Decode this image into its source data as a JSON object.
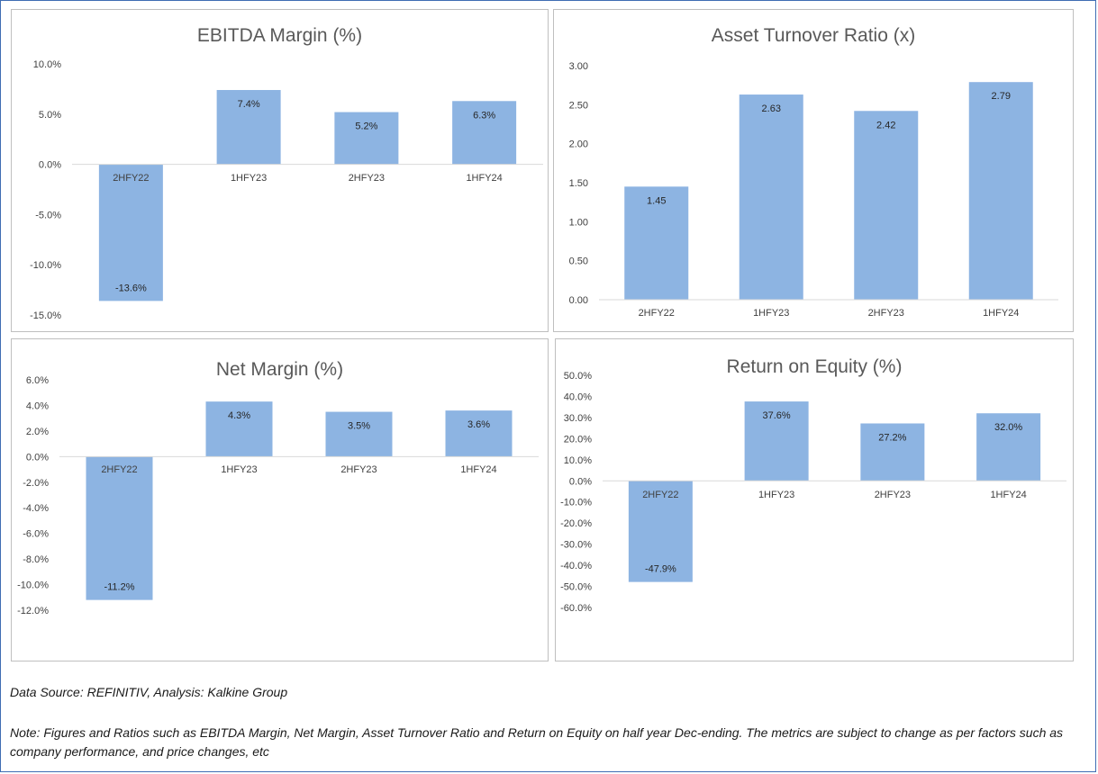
{
  "chart_data": [
    {
      "type": "bar",
      "title": "EBITDA Margin (%)",
      "categories": [
        "2HFY22",
        "1HFY23",
        "2HFY23",
        "1HFY24"
      ],
      "values": [
        -13.6,
        7.4,
        5.2,
        6.3
      ],
      "value_labels": [
        "-13.6%",
        "7.4%",
        "5.2%",
        "6.3%"
      ],
      "ylim": [
        -15.0,
        10.0
      ],
      "yticks": [
        "10.0%",
        "5.0%",
        "0.0%",
        "-5.0%",
        "-10.0%",
        "-15.0%"
      ],
      "grid": false,
      "bar_color": "#8db4e2"
    },
    {
      "type": "bar",
      "title": "Asset Turnover Ratio (x)",
      "categories": [
        "2HFY22",
        "1HFY23",
        "2HFY23",
        "1HFY24"
      ],
      "values": [
        1.45,
        2.63,
        2.42,
        2.79
      ],
      "value_labels": [
        "1.45",
        "2.63",
        "2.42",
        "2.79"
      ],
      "ylim": [
        0.0,
        3.0
      ],
      "yticks": [
        "3.00",
        "2.50",
        "2.00",
        "1.50",
        "1.00",
        "0.50",
        "0.00"
      ],
      "grid": false,
      "bar_color": "#8db4e2"
    },
    {
      "type": "bar",
      "title": "Net Margin (%)",
      "categories": [
        "2HFY22",
        "1HFY23",
        "2HFY23",
        "1HFY24"
      ],
      "values": [
        -11.2,
        4.3,
        3.5,
        3.6
      ],
      "value_labels": [
        "-11.2%",
        "4.3%",
        "3.5%",
        "3.6%"
      ],
      "ylim": [
        -12.0,
        6.0
      ],
      "yticks": [
        "6.0%",
        "4.0%",
        "2.0%",
        "0.0%",
        "-2.0%",
        "-4.0%",
        "-6.0%",
        "-8.0%",
        "-10.0%",
        "-12.0%"
      ],
      "grid": false,
      "bar_color": "#8db4e2"
    },
    {
      "type": "bar",
      "title": "Return on Equity (%)",
      "categories": [
        "2HFY22",
        "1HFY23",
        "2HFY23",
        "1HFY24"
      ],
      "values": [
        -47.9,
        37.6,
        27.2,
        32.0
      ],
      "value_labels": [
        "-47.9%",
        "37.6%",
        "27.2%",
        "32.0%"
      ],
      "ylim": [
        -60.0,
        50.0
      ],
      "yticks": [
        "50.0%",
        "40.0%",
        "30.0%",
        "20.0%",
        "10.0%",
        "0.0%",
        "-10.0%",
        "-20.0%",
        "-30.0%",
        "-40.0%",
        "-50.0%",
        "-60.0%"
      ],
      "grid": false,
      "bar_color": "#8db4e2"
    }
  ],
  "footer": {
    "source": "Data Source: REFINITIV, Analysis: Kalkine Group",
    "note": "Note: Figures and Ratios such as EBITDA Margin, Net Margin, Asset Turnover Ratio and Return on Equity on half year Dec-ending. The metrics are subject to change as per factors such as company performance, and price changes, etc"
  }
}
